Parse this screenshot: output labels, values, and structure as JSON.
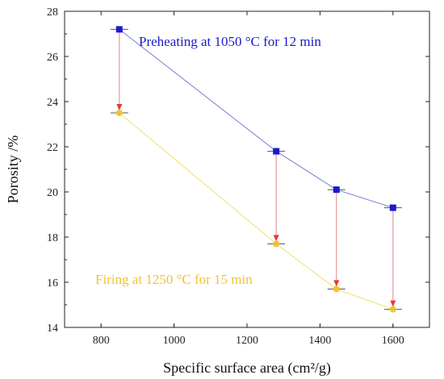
{
  "chart_data": {
    "type": "line",
    "xlabel": "Specific surface area (cm²/g)",
    "ylabel": "Porosity /%",
    "xlim": [
      700,
      1700
    ],
    "ylim": [
      14,
      28
    ],
    "x_ticks": [
      800,
      1000,
      1200,
      1400,
      1600
    ],
    "y_ticks": [
      14,
      16,
      18,
      20,
      22,
      24,
      26,
      28
    ],
    "grid": false,
    "legend": "none",
    "series": [
      {
        "name": "Preheating at 1050 °C for 12 min",
        "color": "#1a1acc",
        "line_color": "#7b7bd6",
        "marker": "square",
        "points": [
          {
            "x": 850,
            "y": 27.2
          },
          {
            "x": 1280,
            "y": 21.8
          },
          {
            "x": 1445,
            "y": 20.1
          },
          {
            "x": 1600,
            "y": 19.3
          }
        ]
      },
      {
        "name": "Firing at 1250 °C for 15 min",
        "color": "#f2c230",
        "line_color": "#efe26a",
        "marker": "circle",
        "points": [
          {
            "x": 850,
            "y": 23.5
          },
          {
            "x": 1280,
            "y": 17.7
          },
          {
            "x": 1445,
            "y": 15.7
          },
          {
            "x": 1600,
            "y": 14.8
          }
        ]
      }
    ],
    "arrows": {
      "color": "#e03a3a",
      "direction": "down",
      "pairs": [
        [
          0,
          0
        ],
        [
          1,
          1
        ],
        [
          2,
          2
        ],
        [
          3,
          3
        ]
      ]
    },
    "annotations": {
      "preheating_label": "Preheating at 1050 °C for 12 min",
      "firing_label": "Firing at 1250 °C for 15 min"
    }
  }
}
